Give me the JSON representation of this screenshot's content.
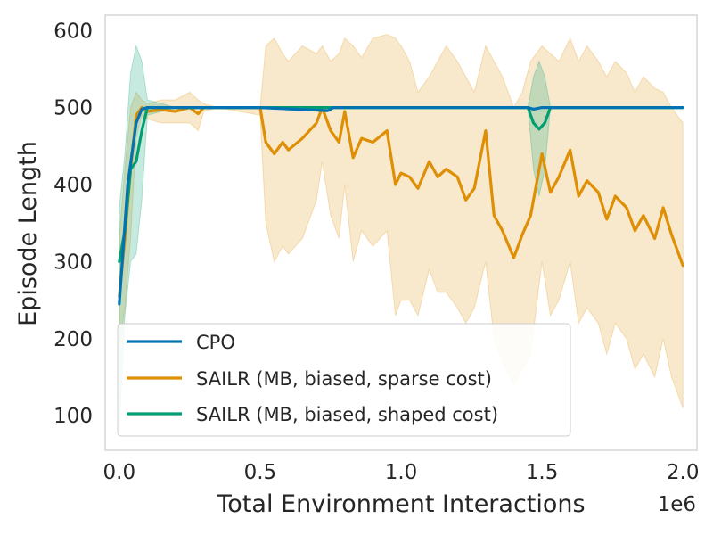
{
  "chart_data": {
    "type": "line",
    "title": "",
    "xlabel": "Total Environment Interactions",
    "ylabel": "Episode Length",
    "x_offset_label": "1e6",
    "xlim": [
      -0.05,
      2.05
    ],
    "ylim": [
      55,
      620
    ],
    "x_ticks": [
      0.0,
      0.5,
      1.0,
      1.5,
      2.0
    ],
    "x_tick_labels": [
      "0.0",
      "0.5",
      "1.0",
      "1.5",
      "2.0"
    ],
    "y_ticks": [
      100,
      200,
      300,
      400,
      500,
      600
    ],
    "y_tick_labels": [
      "100",
      "200",
      "300",
      "400",
      "500",
      "600"
    ],
    "grid": false,
    "legend_position": "lower-left",
    "series": [
      {
        "name": "CPO",
        "color": "#0173b2",
        "x": [
          0.0,
          0.03,
          0.06,
          0.08,
          0.1,
          0.2,
          0.3,
          0.5,
          0.74,
          0.76,
          1.0,
          1.45,
          1.47,
          1.5,
          1.53,
          2.0
        ],
        "y": [
          245,
          400,
          480,
          498,
          500,
          500,
          500,
          500,
          496,
          500,
          500,
          500,
          498,
          500,
          500,
          500
        ],
        "band_upper": [],
        "band_lower": []
      },
      {
        "name": "SAILR (MB, biased, sparse cost)",
        "color": "#de8f05",
        "x": [
          0.0,
          0.02,
          0.04,
          0.06,
          0.08,
          0.1,
          0.15,
          0.2,
          0.25,
          0.28,
          0.3,
          0.35,
          0.5,
          0.52,
          0.55,
          0.58,
          0.6,
          0.65,
          0.7,
          0.72,
          0.75,
          0.78,
          0.8,
          0.83,
          0.86,
          0.9,
          0.95,
          0.98,
          1.0,
          1.03,
          1.06,
          1.1,
          1.13,
          1.16,
          1.2,
          1.23,
          1.26,
          1.3,
          1.33,
          1.36,
          1.4,
          1.43,
          1.46,
          1.5,
          1.53,
          1.56,
          1.6,
          1.63,
          1.66,
          1.7,
          1.73,
          1.76,
          1.8,
          1.83,
          1.86,
          1.9,
          1.93,
          1.96,
          2.0
        ],
        "y": [
          255,
          330,
          420,
          490,
          500,
          495,
          497,
          495,
          500,
          492,
          500,
          500,
          500,
          455,
          440,
          455,
          445,
          460,
          480,
          500,
          470,
          455,
          495,
          435,
          460,
          455,
          470,
          400,
          415,
          410,
          395,
          430,
          410,
          420,
          410,
          380,
          395,
          470,
          360,
          340,
          305,
          335,
          360,
          440,
          390,
          410,
          445,
          385,
          405,
          390,
          355,
          385,
          370,
          340,
          360,
          330,
          370,
          335,
          295
        ],
        "band_upper": [
          330,
          420,
          500,
          520,
          510,
          505,
          510,
          510,
          520,
          510,
          505,
          500,
          500,
          580,
          590,
          570,
          560,
          580,
          570,
          580,
          560,
          570,
          590,
          580,
          565,
          590,
          595,
          590,
          580,
          560,
          520,
          540,
          560,
          580,
          560,
          540,
          520,
          580,
          560,
          540,
          500,
          520,
          560,
          580,
          570,
          560,
          590,
          560,
          580,
          560,
          540,
          560,
          545,
          520,
          540,
          525,
          520,
          500,
          480
        ],
        "band_lower": [
          190,
          240,
          330,
          460,
          490,
          485,
          480,
          480,
          480,
          470,
          495,
          500,
          490,
          350,
          300,
          320,
          310,
          330,
          380,
          430,
          360,
          330,
          400,
          300,
          340,
          320,
          340,
          230,
          250,
          250,
          230,
          290,
          260,
          260,
          240,
          220,
          240,
          300,
          200,
          170,
          140,
          160,
          180,
          300,
          230,
          250,
          300,
          220,
          240,
          220,
          180,
          220,
          200,
          160,
          180,
          150,
          200,
          150,
          110
        ]
      },
      {
        "name": "SAILR (MB, biased, shaped cost)",
        "color": "#029e73",
        "x": [
          0.0,
          0.02,
          0.04,
          0.06,
          0.08,
          0.1,
          0.2,
          0.5,
          1.0,
          1.45,
          1.47,
          1.49,
          1.51,
          1.53,
          2.0
        ],
        "y": [
          300,
          340,
          420,
          430,
          470,
          500,
          500,
          500,
          500,
          500,
          480,
          472,
          480,
          500,
          500
        ],
        "band_upper": [
          370,
          440,
          545,
          580,
          560,
          510,
          500,
          500,
          500,
          500,
          540,
          560,
          540,
          500,
          500
        ],
        "band_lower": [
          80,
          230,
          300,
          310,
          380,
          490,
          500,
          500,
          500,
          500,
          420,
          385,
          420,
          500,
          500
        ]
      }
    ]
  }
}
